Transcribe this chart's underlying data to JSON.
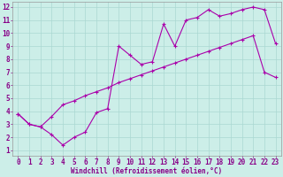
{
  "xlabel": "Windchill (Refroidissement éolien,°C)",
  "background_color": "#cceee8",
  "grid_color": "#aad8d2",
  "line_color": "#aa00aa",
  "xlim_min": -0.5,
  "xlim_max": 23.5,
  "ylim_min": 0.6,
  "ylim_max": 12.4,
  "xticks": [
    0,
    1,
    2,
    3,
    4,
    5,
    6,
    7,
    8,
    9,
    10,
    11,
    12,
    13,
    14,
    15,
    16,
    17,
    18,
    19,
    20,
    21,
    22,
    23
  ],
  "yticks": [
    1,
    2,
    3,
    4,
    5,
    6,
    7,
    8,
    9,
    10,
    11,
    12
  ],
  "line1_x": [
    0,
    1,
    2,
    3,
    4,
    5,
    6,
    7,
    8,
    9,
    10,
    11,
    12,
    13,
    14,
    15,
    16,
    17,
    18,
    19,
    20,
    21,
    22,
    23
  ],
  "line1_y": [
    3.8,
    3.0,
    2.8,
    2.2,
    1.4,
    2.0,
    2.4,
    3.9,
    4.2,
    9.0,
    8.3,
    7.6,
    7.8,
    10.7,
    9.0,
    11.0,
    11.2,
    11.8,
    11.3,
    11.5,
    11.8,
    12.0,
    11.8,
    9.2
  ],
  "line2_x": [
    0,
    1,
    2,
    3,
    4,
    5,
    6,
    7,
    8,
    9,
    10,
    11,
    12,
    13,
    14,
    15,
    16,
    17,
    18,
    19,
    20,
    21,
    22,
    23
  ],
  "line2_y": [
    3.8,
    3.0,
    2.8,
    3.6,
    4.5,
    4.8,
    5.2,
    5.5,
    5.8,
    6.2,
    6.5,
    6.8,
    7.1,
    7.4,
    7.7,
    8.0,
    8.3,
    8.6,
    8.9,
    9.2,
    9.5,
    9.8,
    7.0,
    6.6
  ],
  "xlabel_fontsize": 5.5,
  "tick_fontsize": 5.5
}
